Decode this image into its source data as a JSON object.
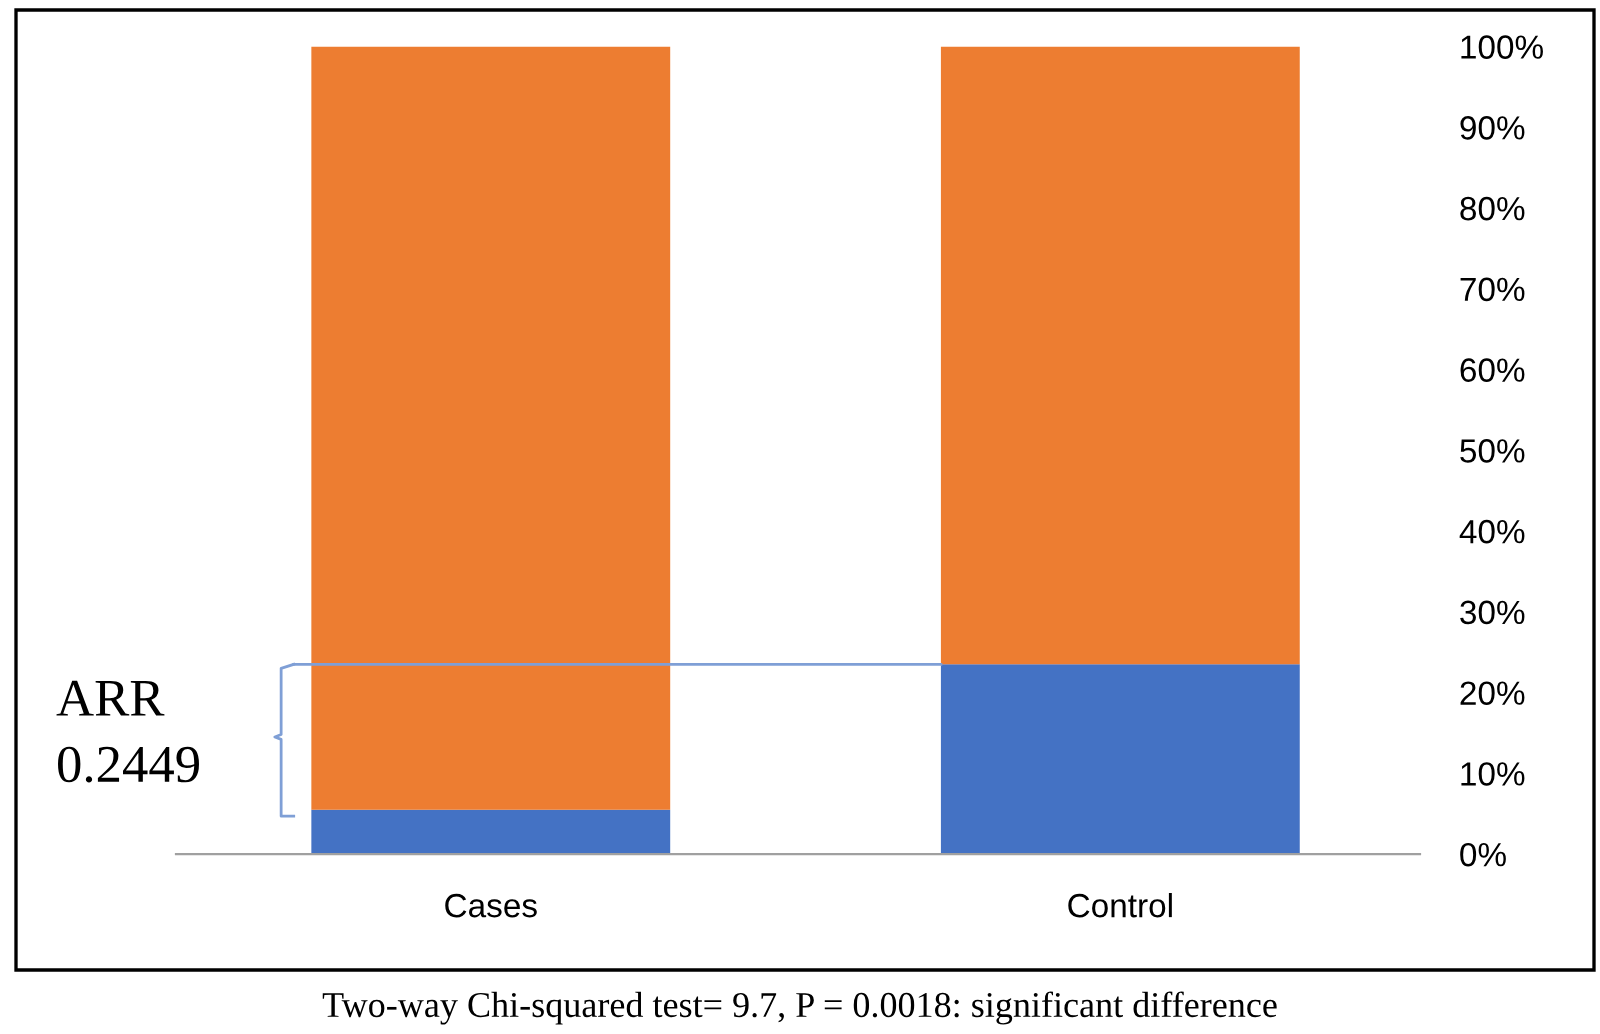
{
  "chart_data": {
    "type": "bar",
    "stacked": true,
    "categories": [
      "Cases",
      "Control"
    ],
    "series": [
      {
        "color": "#4472c4",
        "values": [
          5.5,
          23.5
        ]
      },
      {
        "color": "#ed7d31",
        "values": [
          94.5,
          76.5
        ]
      }
    ],
    "ylim": [
      0,
      100
    ],
    "yticks": [
      {
        "value": 0,
        "label": "0%"
      },
      {
        "value": 10,
        "label": "10%"
      },
      {
        "value": 20,
        "label": "20%"
      },
      {
        "value": 30,
        "label": "30%"
      },
      {
        "value": 40,
        "label": "40%"
      },
      {
        "value": 50,
        "label": "50%"
      },
      {
        "value": 60,
        "label": "60%"
      },
      {
        "value": 70,
        "label": "70%"
      },
      {
        "value": 80,
        "label": "80%"
      },
      {
        "value": 90,
        "label": "90%"
      },
      {
        "value": 100,
        "label": "100%"
      }
    ],
    "ref_lines": [
      {
        "axis": "y",
        "value": 23.5,
        "color": "#7f9fd6"
      }
    ],
    "grid": false,
    "legend": false,
    "annotations": [
      "ARR\n0.2449",
      "Two-way Chi-squared test= 9.7, P = 0.0018: significant difference"
    ]
  }
}
